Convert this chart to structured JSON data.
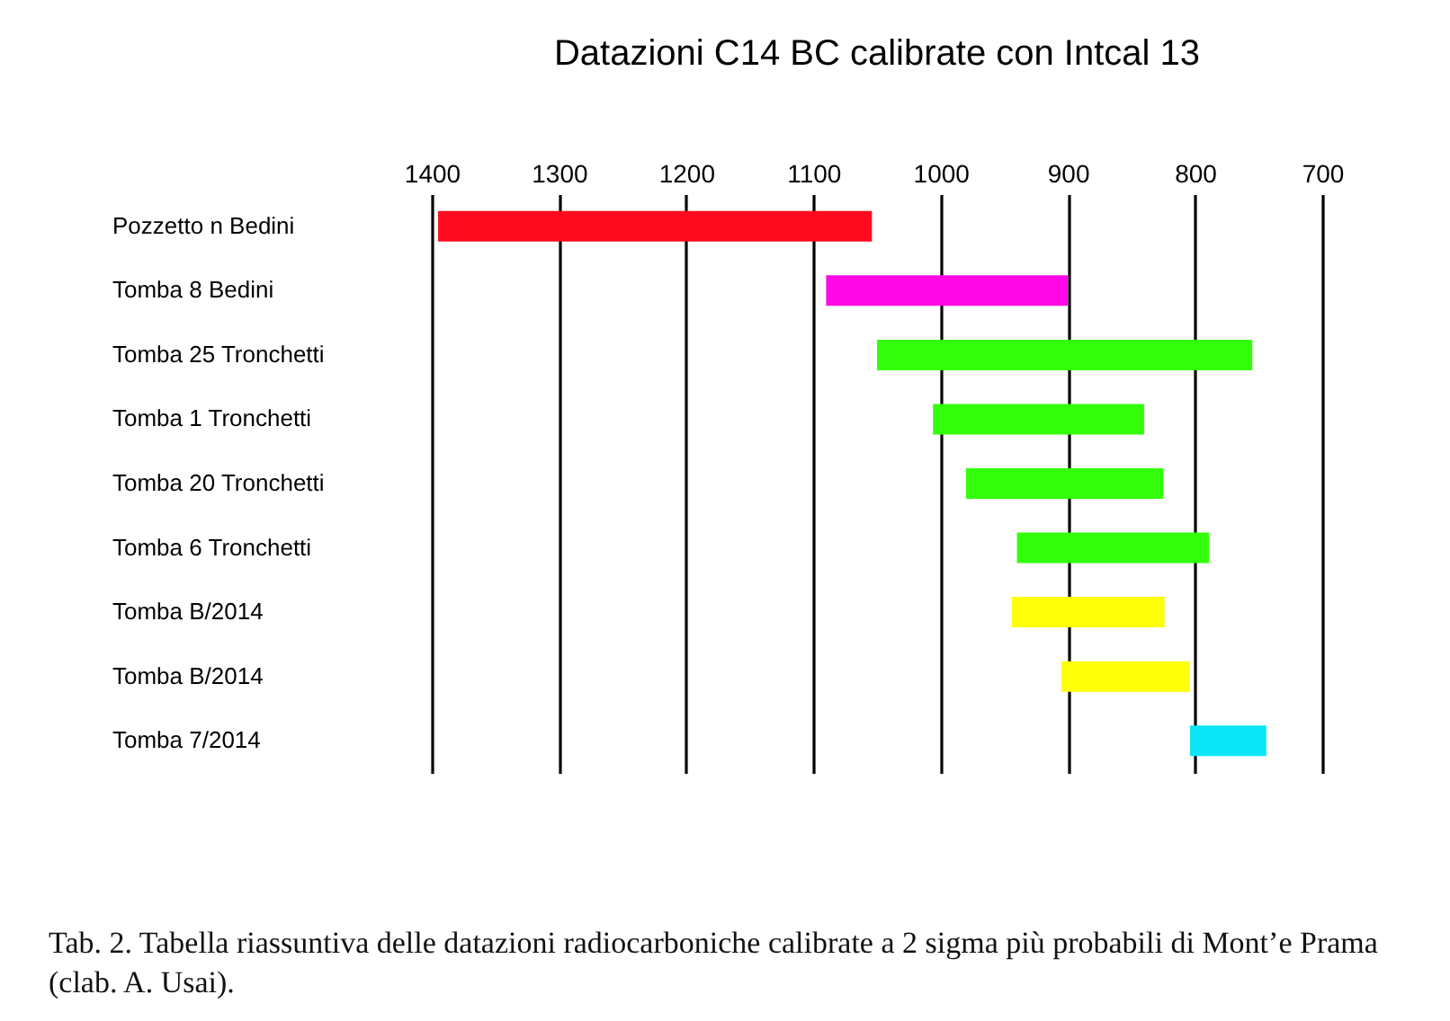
{
  "chart_data": {
    "type": "bar",
    "orientation": "horizontal",
    "title": "Datazioni C14 BC calibrate con Intcal 13",
    "categories": [
      "Pozzetto n Bedini",
      "Tomba 8 Bedini",
      "Tomba 25 Tronchetti",
      "Tomba 1 Tronchetti",
      "Tomba 20 Tronchetti",
      "Tomba 6 Tronchetti",
      "Tomba B/2014",
      "Tomba B/2014",
      "Tomba 7/2014"
    ],
    "base": [
      1395,
      1090,
      1050,
      1006,
      980,
      940,
      944,
      905,
      804
    ],
    "values": [
      -341,
      -190,
      -295,
      -166,
      -155,
      -151,
      -120,
      -101,
      -60
    ],
    "colors": [
      "#ff0a1e",
      "#ff0ae6",
      "#33ff0a",
      "#33ff0a",
      "#33ff0a",
      "#33ff0a",
      "#ffff0a",
      "#ffff0a",
      "#0ae6f5"
    ],
    "xlim": [
      1400,
      700
    ],
    "xticks": [
      1400,
      1300,
      1200,
      1100,
      1000,
      900,
      800,
      700
    ],
    "grid": "x",
    "annotations": [
      "Tab. 2. Tabella riassuntiva delle datazioni radiocarboniche calibrate a 2 sigma più probabili di Mont’e Prama (clab. A. Usai)."
    ]
  }
}
